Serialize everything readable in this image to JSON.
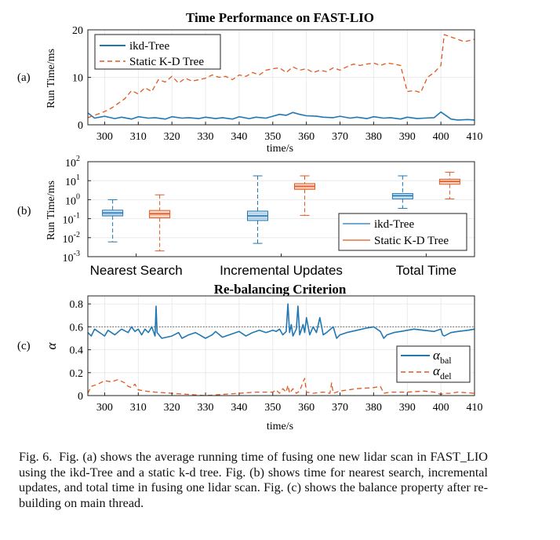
{
  "figure": {
    "panel_labels": [
      "(a)",
      "(b)",
      "(c)"
    ],
    "caption_lead": "Fig. 6.",
    "caption_text": "Fig. (a) shows the average running time of fusing one new lidar scan in FAST_LIO using the ikd-Tree and a static k-d tree. Fig. (b) shows time for nearest search, incremental updates, and total time in fusing one lidar scan. Fig. (c) shows the balance property after re-building on main thread."
  },
  "colors": {
    "ikd": "#1f77b4",
    "static": "#e0581e",
    "axis": "#222222",
    "ref_line": "#555555"
  },
  "chart_data": [
    {
      "id": "a",
      "type": "line",
      "title": "Time Performance on FAST-LIO",
      "xlabel": "time/s",
      "ylabel": "Run Time/ms",
      "xlim": [
        295,
        410
      ],
      "ylim": [
        0,
        20
      ],
      "xticks": [
        "300",
        "310",
        "320",
        "330",
        "340",
        "350",
        "360",
        "370",
        "380",
        "390",
        "400",
        "410"
      ],
      "yticks": [
        "0",
        "10",
        "20"
      ],
      "legend_location": "top-left",
      "series": [
        {
          "name": "ikd-Tree",
          "style": "solid",
          "x": [
            295,
            297,
            300,
            303,
            305,
            308,
            310,
            313,
            315,
            318,
            320,
            323,
            325,
            328,
            330,
            333,
            335,
            338,
            340,
            343,
            345,
            348,
            350,
            352,
            354,
            356,
            358,
            360,
            363,
            365,
            368,
            370,
            373,
            375,
            378,
            380,
            383,
            385,
            388,
            390,
            393,
            395,
            398,
            400,
            401,
            403,
            405,
            408,
            410
          ],
          "y": [
            2.5,
            1.4,
            1.8,
            1.3,
            1.6,
            1.2,
            1.7,
            1.4,
            1.5,
            1.2,
            1.7,
            1.4,
            1.5,
            1.3,
            1.6,
            1.3,
            1.5,
            1.2,
            1.7,
            1.3,
            1.6,
            1.4,
            1.8,
            2.2,
            2.0,
            2.6,
            2.2,
            1.9,
            1.8,
            1.6,
            1.5,
            1.8,
            1.4,
            1.6,
            1.3,
            1.7,
            1.4,
            1.5,
            1.2,
            1.6,
            1.3,
            1.4,
            1.5,
            2.7,
            2.2,
            1.2,
            1.0,
            1.1,
            1.0
          ]
        },
        {
          "name": "Static K-D Tree",
          "style": "dashed",
          "x": [
            295,
            297,
            300,
            302,
            304,
            306,
            308,
            310,
            312,
            314,
            316,
            318,
            320,
            322,
            324,
            326,
            328,
            330,
            332,
            334,
            336,
            338,
            340,
            342,
            344,
            346,
            348,
            350,
            352,
            354,
            356,
            358,
            360,
            362,
            364,
            366,
            368,
            370,
            372,
            374,
            376,
            378,
            380,
            382,
            384,
            386,
            388,
            390,
            392,
            394,
            396,
            398,
            400,
            401,
            403,
            405,
            407,
            410
          ],
          "y": [
            1.5,
            2.0,
            2.8,
            3.5,
            4.5,
            5.5,
            7.2,
            6.5,
            7.8,
            7.0,
            9.5,
            9.0,
            10.2,
            8.8,
            9.8,
            9.2,
            9.5,
            9.8,
            10.5,
            10.0,
            10.2,
            9.5,
            10.5,
            10.2,
            11.0,
            10.5,
            11.5,
            11.8,
            12.0,
            11.0,
            12.2,
            11.5,
            11.8,
            11.0,
            11.5,
            11.2,
            12.0,
            11.5,
            12.2,
            12.8,
            12.5,
            12.8,
            13.0,
            12.5,
            13.0,
            12.8,
            12.5,
            7.0,
            7.2,
            6.8,
            10.0,
            11.0,
            12.5,
            19.0,
            18.5,
            18.0,
            17.5,
            18.0
          ]
        }
      ]
    },
    {
      "id": "b",
      "type": "box",
      "xlabel": "",
      "ylabel": "Run Time/ms",
      "yscale": "log",
      "ylim_exponent": [
        -3,
        2
      ],
      "ytick_exponents": [
        "2",
        "1",
        "0",
        "-1",
        "-2",
        "-3"
      ],
      "categories": [
        "Nearest Search",
        "Incremental Updates",
        "Total Time"
      ],
      "legend_location": "bottom-right",
      "series": [
        {
          "name": "ikd-Tree",
          "boxes": [
            {
              "whisker_low": 0.006,
              "q1": 0.14,
              "median": 0.2,
              "q3": 0.28,
              "whisker_high": 1.0
            },
            {
              "whisker_low": 0.005,
              "q1": 0.08,
              "median": 0.14,
              "q3": 0.25,
              "whisker_high": 18
            },
            {
              "whisker_low": 0.35,
              "q1": 1.1,
              "median": 1.6,
              "q3": 2.1,
              "whisker_high": 18
            }
          ]
        },
        {
          "name": "Static K-D Tree",
          "boxes": [
            {
              "whisker_low": 0.002,
              "q1": 0.11,
              "median": 0.18,
              "q3": 0.27,
              "whisker_high": 1.8
            },
            {
              "whisker_low": 0.15,
              "q1": 3.5,
              "median": 5.0,
              "q3": 7.0,
              "whisker_high": 18
            },
            {
              "whisker_low": 1.1,
              "q1": 6.5,
              "median": 9.0,
              "q3": 12.0,
              "whisker_high": 28
            }
          ]
        }
      ]
    },
    {
      "id": "c",
      "type": "line",
      "title": "Re-balancing Criterion",
      "xlabel": "time/s",
      "ylabel": "α",
      "xlim": [
        295,
        410
      ],
      "ylim": [
        0,
        0.87
      ],
      "xticks": [
        "300",
        "310",
        "320",
        "330",
        "340",
        "350",
        "360",
        "370",
        "380",
        "390",
        "400",
        "410"
      ],
      "yticks": [
        "0",
        "0.2",
        "0.4",
        "0.6",
        "0.8"
      ],
      "reference_line": 0.6,
      "legend_location": "bottom-right",
      "series": [
        {
          "name": "α",
          "subscript": "bal",
          "style": "solid",
          "x": [
            295,
            296,
            297,
            300,
            301,
            303,
            305,
            307,
            308,
            309,
            310,
            311,
            312,
            313,
            314,
            315,
            315.3,
            315.6,
            317,
            320,
            322,
            323,
            325,
            327,
            330,
            332,
            333,
            335,
            338,
            340,
            342,
            344,
            346,
            348,
            350,
            351,
            352,
            353,
            354,
            354.5,
            355,
            355.5,
            356,
            357,
            357.5,
            358,
            359,
            359.5,
            360,
            361,
            362,
            363,
            364,
            365,
            366,
            368,
            369,
            370,
            372,
            375,
            378,
            380,
            382,
            383,
            384,
            386,
            388,
            390,
            392,
            395,
            398,
            400,
            400.5,
            401,
            403,
            405,
            408,
            410
          ],
          "y": [
            0.55,
            0.52,
            0.58,
            0.52,
            0.57,
            0.53,
            0.58,
            0.55,
            0.6,
            0.56,
            0.58,
            0.53,
            0.58,
            0.55,
            0.6,
            0.52,
            0.78,
            0.55,
            0.5,
            0.52,
            0.55,
            0.5,
            0.53,
            0.55,
            0.5,
            0.53,
            0.56,
            0.51,
            0.54,
            0.56,
            0.52,
            0.55,
            0.57,
            0.55,
            0.57,
            0.56,
            0.58,
            0.53,
            0.56,
            0.8,
            0.55,
            0.62,
            0.52,
            0.58,
            0.78,
            0.53,
            0.62,
            0.55,
            0.68,
            0.53,
            0.6,
            0.55,
            0.68,
            0.53,
            0.55,
            0.6,
            0.5,
            0.53,
            0.55,
            0.57,
            0.59,
            0.6,
            0.56,
            0.5,
            0.53,
            0.55,
            0.56,
            0.57,
            0.58,
            0.57,
            0.56,
            0.58,
            0.53,
            0.52,
            0.55,
            0.56,
            0.57,
            0.58
          ]
        },
        {
          "name": "α",
          "subscript": "del",
          "style": "dashed",
          "x": [
            295,
            296,
            298,
            300,
            302,
            304,
            306,
            307,
            308,
            309,
            310,
            312,
            315,
            320,
            325,
            330,
            335,
            340,
            345,
            350,
            351,
            352,
            353,
            354,
            354.5,
            355,
            356,
            357,
            358,
            359,
            359.5,
            360,
            362,
            365,
            367,
            367.5,
            368,
            370,
            375,
            380,
            382,
            383,
            385,
            390,
            395,
            398,
            400,
            401,
            403,
            405,
            410
          ],
          "y": [
            0.02,
            0.08,
            0.1,
            0.13,
            0.12,
            0.14,
            0.11,
            0.08,
            0.07,
            0.1,
            0.05,
            0.04,
            0.03,
            0.02,
            0.01,
            0.0,
            0.01,
            0.02,
            0.03,
            0.03,
            0.05,
            0.02,
            0.06,
            0.03,
            0.09,
            0.02,
            0.06,
            0.02,
            0.04,
            0.12,
            0.15,
            0.03,
            0.02,
            0.03,
            0.02,
            0.11,
            0.02,
            0.04,
            0.06,
            0.07,
            0.08,
            0.02,
            0.03,
            0.03,
            0.04,
            0.03,
            0.01,
            0.02,
            0.02,
            0.03,
            0.02
          ]
        }
      ]
    }
  ]
}
